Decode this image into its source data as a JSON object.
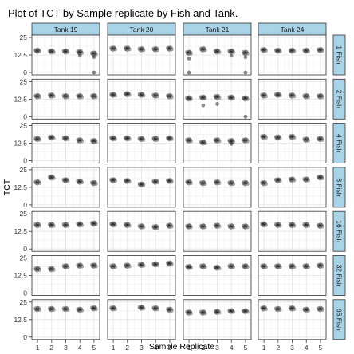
{
  "chart_data": {
    "type": "scatter",
    "title": "Plot of TCT by Sample replicate by Fish and Tank.",
    "xlabel": "Sample Replicate",
    "ylabel": "TCT",
    "x_ticks": [
      1,
      2,
      3,
      4,
      5
    ],
    "y_ticks": [
      "0",
      "12.5",
      "25"
    ],
    "ylim": [
      0,
      25
    ],
    "xlim": [
      0.6,
      5.4
    ],
    "grid": true,
    "facet_columns": [
      "Tank 19",
      "Tank 20",
      "Tank 21",
      "Tank 24"
    ],
    "facet_rows": [
      "1 Fish",
      "2 Fish",
      "4 Fish",
      "8 Fish",
      "16 Fish",
      "32 Fish",
      "65 Fish"
    ],
    "colors": {
      "strip_fill": "#a9d3e6",
      "point": "#000000",
      "grid": "#e3e3e3",
      "panel_border": "#333333"
    },
    "panels": [
      [
        {
          "x": [
            1,
            2,
            3,
            4,
            5
          ],
          "y": [
            15.5,
            15,
            15,
            14.5,
            13.5
          ],
          "extra": [
            {
              "x": 4,
              "y": 12
            },
            {
              "x": 5,
              "y": 11
            },
            {
              "x": 5,
              "y": 0
            }
          ]
        },
        {
          "x": [
            1,
            2,
            3,
            4,
            5
          ],
          "y": [
            17,
            17,
            16.5,
            16.5,
            17
          ],
          "extra": []
        },
        {
          "x": [
            1,
            2,
            3,
            4,
            5
          ],
          "y": [
            14,
            16.5,
            15,
            15,
            14
          ],
          "extra": [
            {
              "x": 1,
              "y": 10
            },
            {
              "x": 1,
              "y": 0
            },
            {
              "x": 4,
              "y": 12
            },
            {
              "x": 5,
              "y": 11
            },
            {
              "x": 5,
              "y": 0
            }
          ]
        },
        {
          "x": [
            1,
            2,
            3,
            4,
            5
          ],
          "y": [
            16,
            15.5,
            15.5,
            15.5,
            16
          ],
          "extra": []
        }
      ],
      [
        {
          "x": [
            1,
            2,
            3,
            4,
            5
          ],
          "y": [
            14.5,
            15,
            14.5,
            14.5,
            14.5
          ],
          "extra": []
        },
        {
          "x": [
            1,
            2,
            3,
            4,
            5
          ],
          "y": [
            15.5,
            16,
            15.5,
            15,
            14.5
          ],
          "extra": []
        },
        {
          "x": [
            1,
            2,
            3,
            4,
            5
          ],
          "y": [
            13,
            13.5,
            14,
            13.5,
            13
          ],
          "extra": [
            {
              "x": 2,
              "y": 8
            },
            {
              "x": 3,
              "y": 9
            },
            {
              "x": 5,
              "y": 0
            }
          ]
        },
        {
          "x": [
            1,
            2,
            3,
            4,
            5
          ],
          "y": [
            15,
            15.5,
            15,
            14.5,
            14.5
          ],
          "extra": []
        }
      ],
      [
        {
          "x": [
            1,
            2,
            3,
            4,
            5
          ],
          "y": [
            15.5,
            16.5,
            16,
            14.5,
            14
          ],
          "extra": []
        },
        {
          "x": [
            1,
            2,
            3,
            4,
            5
          ],
          "y": [
            16,
            16,
            15.5,
            15.5,
            16
          ],
          "extra": []
        },
        {
          "x": [
            1,
            2,
            3,
            4,
            5
          ],
          "y": [
            14.5,
            13,
            14.5,
            14,
            14.5
          ],
          "extra": [
            {
              "x": 4,
              "y": 12
            }
          ]
        },
        {
          "x": [
            1,
            2,
            3,
            4,
            5
          ],
          "y": [
            17,
            16.5,
            17,
            15,
            15.5
          ],
          "extra": []
        }
      ],
      [
        {
          "x": [
            1,
            2,
            3,
            4,
            5
          ],
          "y": [
            16,
            19.5,
            17.5,
            16.5,
            15.5
          ],
          "extra": []
        },
        {
          "x": [
            1,
            2,
            3,
            4,
            5
          ],
          "y": [
            17.5,
            17,
            14.5,
            16.5,
            17
          ],
          "extra": []
        },
        {
          "x": [
            1,
            2,
            3,
            4,
            5
          ],
          "y": [
            16,
            15.5,
            16,
            15.5,
            15.5
          ],
          "extra": []
        },
        {
          "x": [
            1,
            2,
            3,
            4,
            5
          ],
          "y": [
            15.5,
            17.5,
            18,
            18,
            19.5
          ],
          "extra": []
        }
      ],
      [
        {
          "x": [
            1,
            2,
            3,
            4,
            5
          ],
          "y": [
            17,
            17,
            17,
            17.5,
            18
          ],
          "extra": []
        },
        {
          "x": [
            1,
            2,
            3,
            4,
            5
          ],
          "y": [
            17.5,
            17,
            16,
            15.5,
            16.5
          ],
          "extra": []
        },
        {
          "x": [
            1,
            2,
            3,
            4,
            5
          ],
          "y": [
            16,
            16,
            16.5,
            16,
            16
          ],
          "extra": []
        },
        {
          "x": [
            1,
            2,
            3,
            4,
            5
          ],
          "y": [
            17.5,
            17,
            17,
            17,
            16.5
          ],
          "extra": []
        }
      ],
      [
        {
          "x": [
            1,
            2,
            3,
            4,
            5
          ],
          "y": [
            17,
            17,
            19,
            19.5,
            19.5
          ],
          "extra": []
        },
        {
          "x": [
            1,
            2,
            3,
            4,
            5
          ],
          "y": [
            19,
            19.5,
            20,
            20.5,
            21
          ],
          "extra": []
        },
        {
          "x": [
            1,
            2,
            3,
            4,
            5
          ],
          "y": [
            18.5,
            19,
            18,
            19,
            19
          ],
          "extra": []
        },
        {
          "x": [
            1,
            2,
            3,
            4,
            5
          ],
          "y": [
            19,
            19,
            19,
            19,
            19.5
          ],
          "extra": []
        }
      ],
      [
        {
          "x": [
            1,
            2,
            3,
            4,
            5
          ],
          "y": [
            20,
            20,
            20,
            19.5,
            20.5
          ],
          "extra": []
        },
        {
          "x": [
            1,
            3,
            4,
            5
          ],
          "y": [
            20.5,
            21,
            20.5,
            19.5
          ],
          "extra": []
        },
        {
          "x": [
            1,
            2,
            3,
            4,
            5
          ],
          "y": [
            17.5,
            17.5,
            18,
            18.5,
            18.5
          ],
          "extra": []
        },
        {
          "x": [
            1,
            2,
            3,
            4,
            5
          ],
          "y": [
            20.5,
            20,
            20.5,
            19.5,
            20
          ],
          "extra": []
        }
      ]
    ]
  }
}
